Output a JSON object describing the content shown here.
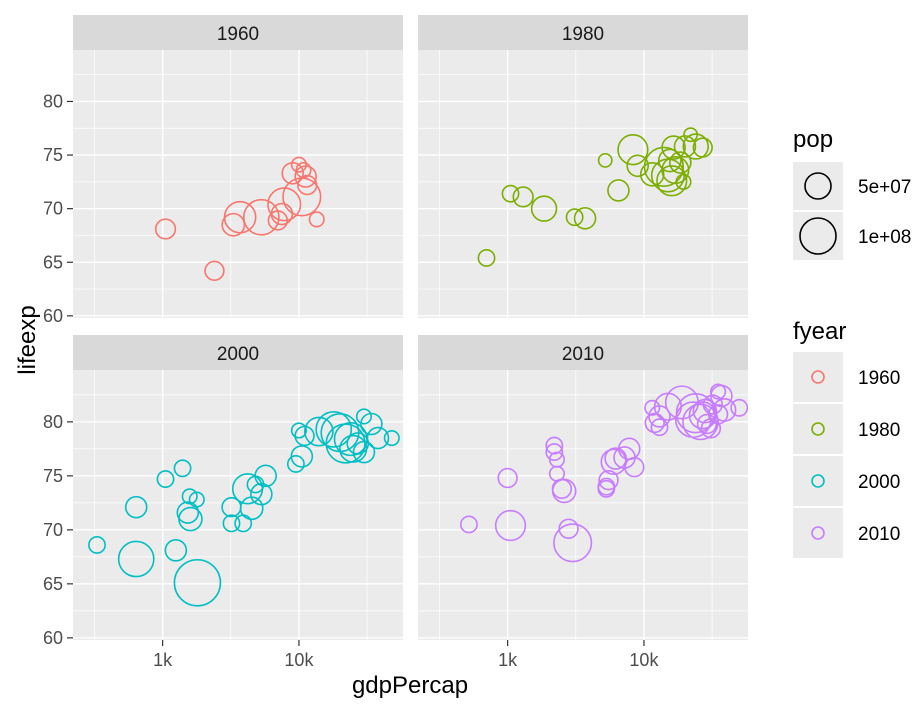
{
  "chart_data": {
    "type": "scatter",
    "facet_by": "fyear",
    "facet_layout": "2x2",
    "x": {
      "label": "gdpPercap",
      "scale": "log10",
      "lim": [
        220,
        58000
      ],
      "breaks": [
        1000,
        10000
      ],
      "tick_labels": [
        "1k",
        "10k"
      ],
      "minor_breaks": [
        316,
        3162,
        31623
      ]
    },
    "y": {
      "label": "lifeexp",
      "lim": [
        59.8,
        84.8
      ],
      "breaks": [
        60,
        65,
        70,
        75,
        80
      ],
      "tick_labels": [
        "60",
        "65",
        "70",
        "75",
        "80"
      ]
    },
    "size": {
      "label": "pop",
      "legend": [
        {
          "value": 50000000,
          "label": "5e+07"
        },
        {
          "value": 100000000,
          "label": "1e+08"
        }
      ]
    },
    "color": {
      "label": "fyear",
      "legend": [
        {
          "value": "1960",
          "color": "#F8766D"
        },
        {
          "value": "1980",
          "color": "#7CAE00"
        },
        {
          "value": "2000",
          "color": "#00BFC4"
        },
        {
          "value": "2010",
          "color": "#C77CFF"
        }
      ]
    },
    "grid": true,
    "legend_position": "right",
    "panels": [
      {
        "label": "1960",
        "color": "#F8766D",
        "points": [
          [
            1050,
            68.1,
            22
          ],
          [
            2400,
            64.2,
            20
          ],
          [
            3300,
            68.5,
            28
          ],
          [
            3700,
            69.2,
            55
          ],
          [
            5300,
            69.2,
            70
          ],
          [
            7000,
            68.9,
            20
          ],
          [
            7500,
            69.5,
            25
          ],
          [
            7800,
            70.4,
            60
          ],
          [
            9000,
            73.3,
            25
          ],
          [
            10000,
            74.1,
            12
          ],
          [
            10500,
            71.1,
            80
          ],
          [
            11200,
            73.0,
            25
          ],
          [
            11500,
            72.2,
            20
          ],
          [
            13500,
            69.0,
            12
          ],
          [
            10800,
            73.6,
            12
          ]
        ]
      },
      {
        "label": "1980",
        "color": "#7CAE00",
        "points": [
          [
            700,
            65.4,
            15
          ],
          [
            1050,
            71.4,
            15
          ],
          [
            1300,
            71.1,
            22
          ],
          [
            1850,
            70.0,
            35
          ],
          [
            3100,
            69.2,
            15
          ],
          [
            3700,
            69.1,
            25
          ],
          [
            5200,
            74.5,
            10
          ],
          [
            6500,
            71.7,
            25
          ],
          [
            8300,
            75.5,
            50
          ],
          [
            9000,
            74.0,
            25
          ],
          [
            11500,
            73.2,
            30
          ],
          [
            14000,
            73.9,
            85
          ],
          [
            15000,
            73.1,
            60
          ],
          [
            16000,
            72.6,
            50
          ],
          [
            15500,
            74.5,
            28
          ],
          [
            16500,
            75.7,
            30
          ],
          [
            18500,
            74.3,
            25
          ],
          [
            20000,
            75.8,
            25
          ],
          [
            22000,
            76.9,
            10
          ],
          [
            24000,
            75.8,
            35
          ],
          [
            27000,
            75.7,
            20
          ],
          [
            19500,
            72.5,
            12
          ],
          [
            17000,
            73.6,
            40
          ]
        ]
      },
      {
        "label": "2000",
        "color": "#00BFC4",
        "points": [
          [
            330,
            68.6,
            15
          ],
          [
            640,
            67.3,
            70
          ],
          [
            640,
            72.1,
            25
          ],
          [
            1050,
            74.7,
            15
          ],
          [
            1250,
            68.1,
            25
          ],
          [
            1400,
            75.7,
            15
          ],
          [
            1580,
            73.1,
            12
          ],
          [
            1530,
            71.6,
            25
          ],
          [
            1600,
            71.0,
            30
          ],
          [
            1780,
            72.8,
            12
          ],
          [
            1800,
            65.1,
            120
          ],
          [
            3200,
            72.1,
            20
          ],
          [
            3200,
            70.6,
            15
          ],
          [
            3900,
            70.6,
            15
          ],
          [
            4200,
            73.8,
            50
          ],
          [
            4500,
            72.0,
            28
          ],
          [
            4800,
            74.2,
            15
          ],
          [
            5300,
            73.3,
            25
          ],
          [
            5700,
            75.0,
            25
          ],
          [
            9500,
            76.1,
            15
          ],
          [
            10500,
            76.8,
            25
          ],
          [
            10000,
            79.2,
            12
          ],
          [
            11000,
            78.7,
            20
          ],
          [
            14000,
            79.1,
            45
          ],
          [
            18000,
            79.3,
            70
          ],
          [
            20000,
            79.0,
            80
          ],
          [
            22000,
            78.0,
            85
          ],
          [
            25000,
            77.5,
            40
          ],
          [
            27000,
            78.0,
            25
          ],
          [
            30000,
            77.2,
            25
          ],
          [
            30000,
            80.5,
            12
          ],
          [
            34000,
            79.8,
            25
          ],
          [
            38000,
            78.5,
            25
          ],
          [
            48000,
            78.5,
            12
          ],
          [
            24000,
            78.4,
            60
          ]
        ]
      },
      {
        "label": "2010",
        "color": "#C77CFF",
        "points": [
          [
            520,
            70.5,
            15
          ],
          [
            1000,
            74.8,
            20
          ],
          [
            1050,
            70.4,
            50
          ],
          [
            2200,
            77.8,
            15
          ],
          [
            2200,
            77.2,
            15
          ],
          [
            2300,
            76.5,
            12
          ],
          [
            2300,
            75.2,
            12
          ],
          [
            2500,
            73.8,
            20
          ],
          [
            2600,
            73.6,
            30
          ],
          [
            2800,
            70.1,
            20
          ],
          [
            3000,
            68.8,
            80
          ],
          [
            5300,
            74.0,
            15
          ],
          [
            5300,
            73.8,
            15
          ],
          [
            5500,
            74.6,
            20
          ],
          [
            6000,
            76.3,
            35
          ],
          [
            6200,
            76.6,
            25
          ],
          [
            7200,
            76.7,
            25
          ],
          [
            7800,
            77.5,
            25
          ],
          [
            8500,
            75.8,
            20
          ],
          [
            11500,
            81.3,
            12
          ],
          [
            12000,
            79.9,
            20
          ],
          [
            13000,
            79.5,
            15
          ],
          [
            13000,
            80.5,
            25
          ],
          [
            15000,
            81.4,
            40
          ],
          [
            19000,
            81.8,
            60
          ],
          [
            24000,
            80.8,
            85
          ],
          [
            26000,
            80.0,
            70
          ],
          [
            27000,
            80.6,
            40
          ],
          [
            28000,
            81.0,
            30
          ],
          [
            29000,
            79.8,
            20
          ],
          [
            31000,
            79.4,
            20
          ],
          [
            32000,
            81.6,
            20
          ],
          [
            35000,
            80.7,
            20
          ],
          [
            35000,
            82.8,
            12
          ],
          [
            37000,
            82.4,
            25
          ],
          [
            39000,
            81.1,
            28
          ],
          [
            50000,
            81.3,
            15
          ],
          [
            23000,
            80.2,
            70
          ]
        ]
      }
    ]
  }
}
